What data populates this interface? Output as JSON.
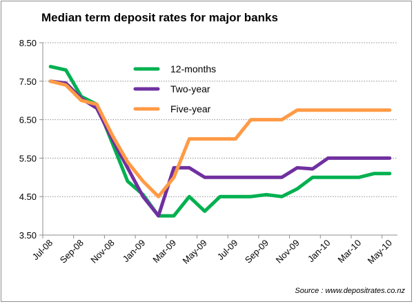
{
  "chart_data": {
    "type": "line",
    "title": "Median term deposit rates for major banks",
    "xlabel": "",
    "ylabel": "",
    "categories": [
      "Jul-08",
      "Aug-08",
      "Sep-08",
      "Oct-08",
      "Nov-08",
      "Dec-08",
      "Jan-09",
      "Feb-09",
      "Mar-09",
      "Apr-09",
      "May-09",
      "Jun-09",
      "Jul-09",
      "Aug-09",
      "Sep-09",
      "Oct-09",
      "Nov-09",
      "Dec-09",
      "Jan-10",
      "Feb-10",
      "Mar-10",
      "Apr-10",
      "May-10"
    ],
    "x_tick_labels": [
      "Jul-08",
      "Sep-08",
      "Nov-08",
      "Jan-09",
      "Mar-09",
      "May-09",
      "Jul-09",
      "Sep-09",
      "Nov-09",
      "Jan-10",
      "Mar-10",
      "May-10"
    ],
    "y_tick_labels": [
      "8.50",
      "7.50",
      "6.50",
      "5.50",
      "4.50",
      "3.50"
    ],
    "ylim": [
      3.5,
      8.5
    ],
    "grid": "horizontal dotted",
    "legend_position": "top-center",
    "series": [
      {
        "name": "12-months",
        "color": "#00b050",
        "values": [
          7.88,
          7.79,
          7.1,
          6.9,
          5.9,
          4.9,
          4.55,
          4.0,
          4.0,
          4.5,
          4.12,
          4.5,
          4.5,
          4.5,
          4.55,
          4.5,
          4.7,
          5.0,
          5.0,
          5.0,
          5.0,
          5.1,
          5.1
        ]
      },
      {
        "name": "Two-year",
        "color": "#7030a0",
        "values": [
          7.5,
          7.45,
          7.05,
          6.8,
          6.0,
          5.25,
          4.5,
          4.0,
          5.25,
          5.25,
          5.0,
          5.0,
          5.0,
          5.0,
          5.0,
          5.0,
          5.25,
          5.22,
          5.5,
          5.5,
          5.5,
          5.5,
          5.5
        ]
      },
      {
        "name": "Five-year",
        "color": "#ff9a45",
        "values": [
          7.5,
          7.4,
          7.0,
          6.9,
          6.1,
          5.4,
          4.9,
          4.5,
          5.0,
          6.0,
          6.0,
          6.0,
          6.0,
          6.5,
          6.5,
          6.5,
          6.75,
          6.75,
          6.75,
          6.75,
          6.75,
          6.75,
          6.75
        ]
      }
    ],
    "source": "Source : www.depositrates.co.nz"
  }
}
